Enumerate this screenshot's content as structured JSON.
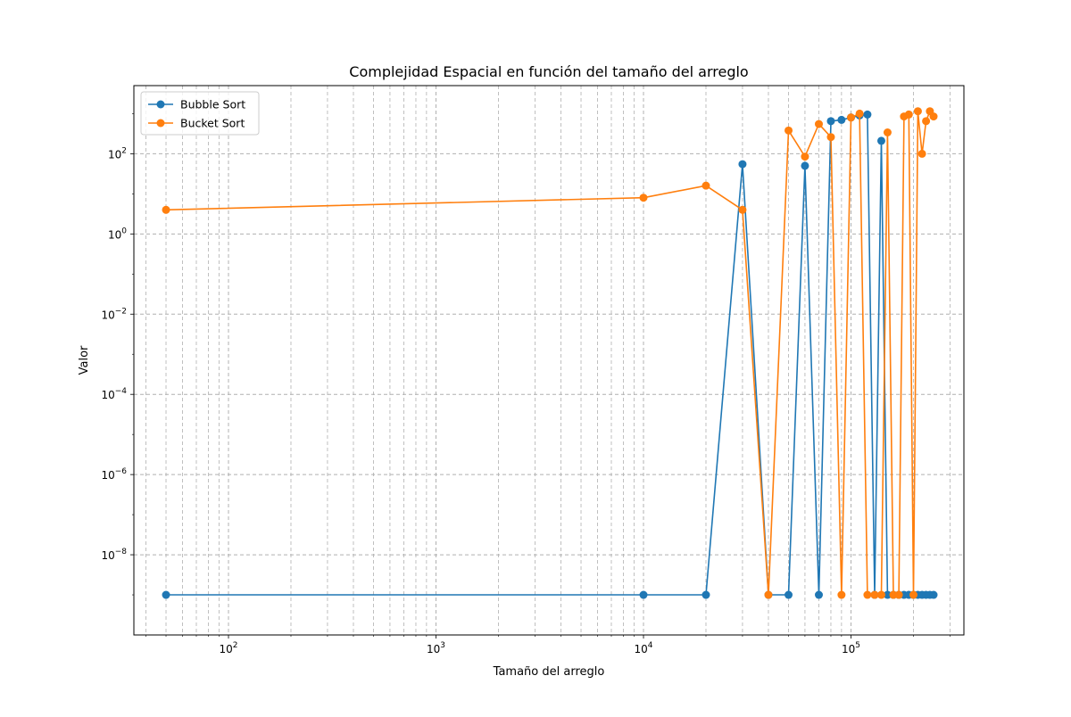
{
  "chart_data": {
    "type": "line",
    "title": "Complejidad Espacial en función del tamaño del arreglo",
    "xlabel": "Tamaño del arreglo",
    "ylabel": "Valor",
    "x_scale": "log",
    "y_scale": "log",
    "xlim": [
      35,
      350000
    ],
    "ylim": [
      1e-10,
      5000
    ],
    "x_ticks": [
      {
        "value": 100,
        "base": "10",
        "exp": "2"
      },
      {
        "value": 1000,
        "base": "10",
        "exp": "3"
      },
      {
        "value": 10000,
        "base": "10",
        "exp": "4"
      },
      {
        "value": 100000,
        "base": "10",
        "exp": "5"
      }
    ],
    "y_ticks": [
      {
        "value": 1e-08,
        "base": "10",
        "exp": "−8"
      },
      {
        "value": 1e-06,
        "base": "10",
        "exp": "−6"
      },
      {
        "value": 0.0001,
        "base": "10",
        "exp": "−4"
      },
      {
        "value": 0.01,
        "base": "10",
        "exp": "−2"
      },
      {
        "value": 1,
        "base": "10",
        "exp": "0"
      },
      {
        "value": 100,
        "base": "10",
        "exp": "2"
      }
    ],
    "grid": true,
    "legend": "upper-left",
    "series": [
      {
        "name": "Bubble Sort",
        "color": "#1f77b4",
        "x": [
          50,
          10000,
          20000,
          30000,
          40000,
          50000,
          60000,
          70000,
          80000,
          90000,
          100000,
          110000,
          120000,
          130000,
          140000,
          150000,
          160000,
          170000,
          180000,
          190000,
          200000,
          210000,
          220000,
          230000,
          240000,
          250000
        ],
        "y": [
          1e-09,
          1e-09,
          1e-09,
          55,
          1e-09,
          1e-09,
          50,
          1e-09,
          650,
          700,
          800,
          900,
          950,
          1e-09,
          210,
          1e-09,
          1e-09,
          1e-09,
          1e-09,
          1e-09,
          1e-09,
          1e-09,
          1e-09,
          1e-09,
          1e-09,
          1e-09
        ]
      },
      {
        "name": "Bucket Sort",
        "color": "#ff7f0e",
        "x": [
          50,
          10000,
          20000,
          30000,
          40000,
          50000,
          60000,
          70000,
          80000,
          90000,
          100000,
          110000,
          120000,
          130000,
          140000,
          150000,
          160000,
          170000,
          180000,
          190000,
          200000,
          210000,
          220000,
          230000,
          240000,
          250000
        ],
        "y": [
          4,
          8,
          16,
          4,
          1e-09,
          380,
          85,
          550,
          260,
          1e-09,
          800,
          1000,
          1e-09,
          1e-09,
          1e-09,
          340,
          1e-09,
          1e-09,
          850,
          950,
          1e-09,
          1150,
          100,
          650,
          1150,
          850
        ]
      }
    ]
  }
}
